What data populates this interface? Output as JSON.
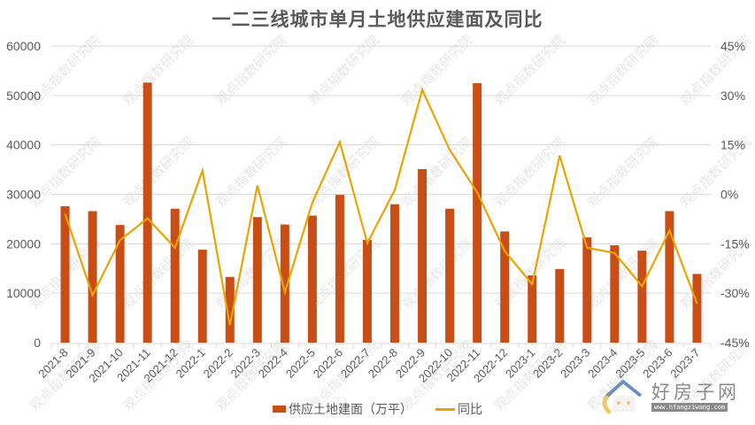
{
  "title": "一二三线城市单月土地供应建面及同比",
  "colors": {
    "bar": "#C94E16",
    "line": "#EAA300",
    "grid": "#D9D9D9",
    "axis_text": "#595959",
    "title": "#595959"
  },
  "legend": {
    "bar_label": "供应土地建面（万平）",
    "line_label": "同比"
  },
  "left_axis": {
    "ticks": [
      "0",
      "10000",
      "20000",
      "30000",
      "40000",
      "50000",
      "60000"
    ],
    "min": 0,
    "max": 60000
  },
  "right_axis": {
    "ticks": [
      "-45%",
      "-30%",
      "-15%",
      "0%",
      "15%",
      "30%",
      "45%"
    ],
    "min": -45,
    "max": 45
  },
  "watermark": {
    "text": "观点指数研究院"
  },
  "logo": {
    "name": "好房子网",
    "url": "www.hfangziwang.com"
  },
  "chart_data": {
    "type": "bar",
    "title": "一二三线城市单月土地供应建面及同比",
    "xlabel": "",
    "ylabel": "",
    "categories": [
      "2021-8",
      "2021-9",
      "2021-10",
      "2021-11",
      "2021-12",
      "2022-1",
      "2022-2",
      "2022-3",
      "2022-4",
      "2022-5",
      "2022-6",
      "2022-7",
      "2022-8",
      "2022-9",
      "2022-10",
      "2022-11",
      "2022-12",
      "2023-1",
      "2023-2",
      "2023-3",
      "2023-4",
      "2023-5",
      "2023-6",
      "2023-7"
    ],
    "series": [
      {
        "name": "供应土地建面（万平）",
        "type": "bar",
        "axis": "left",
        "values": [
          27600,
          26600,
          23800,
          52600,
          27100,
          18800,
          13300,
          25400,
          23900,
          25700,
          29900,
          20800,
          28000,
          35100,
          27100,
          52500,
          22500,
          13600,
          14900,
          21300,
          19700,
          18600,
          26600,
          13900
        ]
      },
      {
        "name": "同比",
        "type": "line",
        "axis": "right",
        "unit": "%",
        "values": [
          -5.9,
          -30.6,
          -13.9,
          -7.3,
          -16.2,
          7.2,
          -39.7,
          2.7,
          -29.7,
          -2.5,
          15.9,
          -14.8,
          1.3,
          31.7,
          13.5,
          0.6,
          -17.2,
          -27.3,
          11.8,
          -16.2,
          -17.8,
          -27.9,
          -11.0,
          -33.1
        ]
      }
    ],
    "ylim": [
      0,
      60000
    ],
    "y2lim": [
      -45,
      45
    ],
    "grid": true,
    "legend_position": "bottom"
  }
}
